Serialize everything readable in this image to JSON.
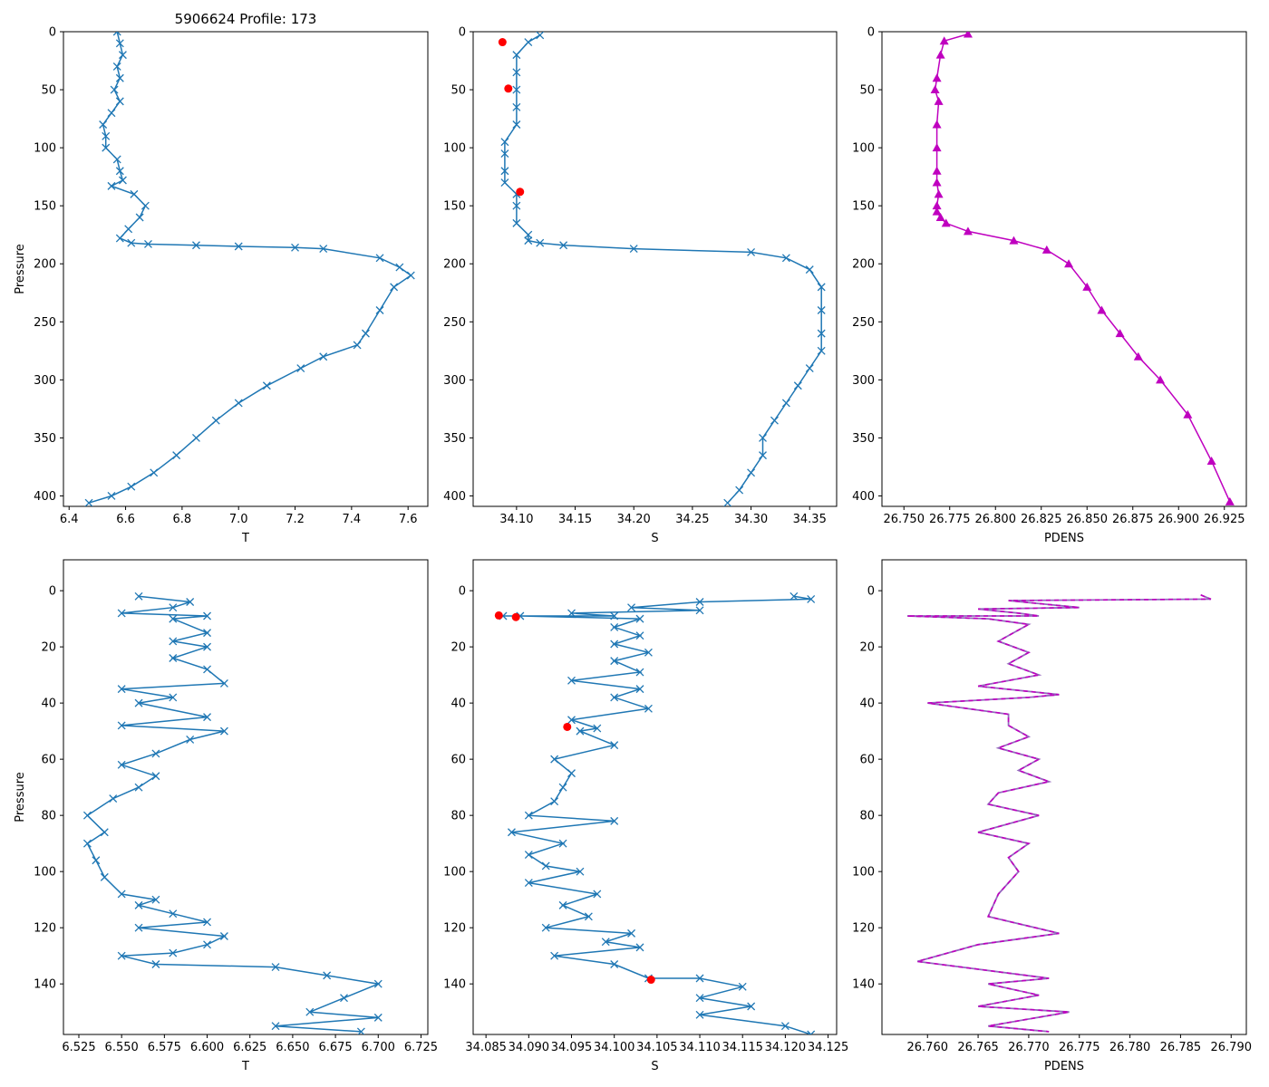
{
  "figure_title": "5906624 Profile: 173",
  "colors": {
    "series": "#1f77b4",
    "flag": "#ff0000",
    "density": "#bf00bf",
    "density_dash": "#9467bd"
  },
  "chart_data": [
    {
      "type": "line",
      "panel": "top-left",
      "xlabel": "T",
      "ylabel": "Pressure",
      "y_inverted": true,
      "xlim": [
        6.38,
        7.67
      ],
      "ylim": [
        409,
        0
      ],
      "xticks": [
        "6.4",
        "6.6",
        "6.8",
        "7.0",
        "7.2",
        "7.4",
        "7.6"
      ],
      "xtick_values": [
        6.4,
        6.6,
        6.8,
        7.0,
        7.2,
        7.4,
        7.6
      ],
      "yticks": [
        "0",
        "50",
        "100",
        "150",
        "200",
        "250",
        "300",
        "350",
        "400"
      ],
      "ytick_values": [
        0,
        50,
        100,
        150,
        200,
        250,
        300,
        350,
        400
      ],
      "marker": "x",
      "series": [
        {
          "name": "T",
          "x": [
            6.57,
            6.58,
            6.59,
            6.57,
            6.58,
            6.56,
            6.58,
            6.55,
            6.52,
            6.53,
            6.53,
            6.57,
            6.58,
            6.59,
            6.55,
            6.63,
            6.67,
            6.65,
            6.61,
            6.58,
            6.62,
            6.68,
            6.85,
            7.0,
            7.2,
            7.3,
            7.5,
            7.57,
            7.61,
            7.55,
            7.5,
            7.45,
            7.42,
            7.3,
            7.22,
            7.1,
            7.0,
            6.92,
            6.85,
            6.78,
            6.7,
            6.62,
            6.55,
            6.47
          ],
          "y": [
            0,
            10,
            20,
            30,
            40,
            50,
            60,
            70,
            80,
            90,
            100,
            110,
            120,
            128,
            133,
            140,
            150,
            160,
            170,
            178,
            182,
            183,
            184,
            185,
            186,
            187,
            195,
            203,
            210,
            220,
            240,
            260,
            270,
            280,
            290,
            305,
            320,
            335,
            350,
            365,
            380,
            392,
            400,
            406
          ]
        }
      ]
    },
    {
      "type": "line",
      "panel": "top-middle",
      "xlabel": "S",
      "y_inverted": true,
      "xlim": [
        34.063,
        34.373
      ],
      "ylim": [
        409,
        0
      ],
      "xticks": [
        "34.10",
        "34.15",
        "34.20",
        "34.25",
        "34.30",
        "34.35"
      ],
      "xtick_values": [
        34.1,
        34.15,
        34.2,
        34.25,
        34.3,
        34.35
      ],
      "yticks": [
        "0",
        "50",
        "100",
        "150",
        "200",
        "250",
        "300",
        "350",
        "400"
      ],
      "ytick_values": [
        0,
        50,
        100,
        150,
        200,
        250,
        300,
        350,
        400
      ],
      "marker": "x",
      "series": [
        {
          "name": "S",
          "x": [
            34.12,
            34.11,
            34.1,
            34.1,
            34.1,
            34.1,
            34.1,
            34.09,
            34.09,
            34.09,
            34.09,
            34.1,
            34.1,
            34.1,
            34.11,
            34.11,
            34.12,
            34.14,
            34.2,
            34.3,
            34.33,
            34.35,
            34.36,
            34.36,
            34.36,
            34.36,
            34.35,
            34.34,
            34.33,
            34.32,
            34.31,
            34.31,
            34.3,
            34.29,
            34.28
          ],
          "y": [
            3,
            9,
            20,
            35,
            50,
            65,
            80,
            95,
            105,
            120,
            130,
            140,
            150,
            165,
            175,
            180,
            182,
            184,
            187,
            190,
            195,
            205,
            220,
            240,
            260,
            275,
            290,
            305,
            320,
            335,
            350,
            365,
            380,
            395,
            406
          ]
        },
        {
          "name": "flagged",
          "x": [
            34.088,
            34.093,
            34.103
          ],
          "y": [
            9,
            49,
            138
          ]
        }
      ]
    },
    {
      "type": "line",
      "panel": "top-right",
      "xlabel": "PDENS",
      "y_inverted": true,
      "xlim": [
        26.738,
        26.937
      ],
      "ylim": [
        409,
        0
      ],
      "xticks": [
        "26.750",
        "26.775",
        "26.800",
        "26.825",
        "26.850",
        "26.875",
        "26.900",
        "26.925"
      ],
      "xtick_values": [
        26.75,
        26.775,
        26.8,
        26.825,
        26.85,
        26.875,
        26.9,
        26.925
      ],
      "yticks": [
        "0",
        "50",
        "100",
        "150",
        "200",
        "250",
        "300",
        "350",
        "400"
      ],
      "ytick_values": [
        0,
        50,
        100,
        150,
        200,
        250,
        300,
        350,
        400
      ],
      "marker": "triangle",
      "series": [
        {
          "name": "PDENS",
          "x": [
            26.785,
            26.772,
            26.77,
            26.768,
            26.767,
            26.769,
            26.768,
            26.768,
            26.768,
            26.768,
            26.769,
            26.768,
            26.768,
            26.77,
            26.773,
            26.785,
            26.81,
            26.828,
            26.84,
            26.85,
            26.858,
            26.868,
            26.878,
            26.89,
            26.905,
            26.918,
            26.928
          ],
          "y": [
            2,
            8,
            20,
            40,
            50,
            60,
            80,
            100,
            120,
            130,
            140,
            150,
            155,
            160,
            165,
            172,
            180,
            188,
            200,
            220,
            240,
            260,
            280,
            300,
            330,
            370,
            405
          ]
        }
      ]
    },
    {
      "type": "line",
      "panel": "bottom-left",
      "xlabel": "T",
      "ylabel": "Pressure",
      "y_inverted": true,
      "xlim": [
        6.516,
        6.729
      ],
      "ylim": [
        158,
        -11
      ],
      "xticks": [
        "6.525",
        "6.550",
        "6.575",
        "6.600",
        "6.625",
        "6.650",
        "6.675",
        "6.700",
        "6.725"
      ],
      "xtick_values": [
        6.525,
        6.55,
        6.575,
        6.6,
        6.625,
        6.65,
        6.675,
        6.7,
        6.725
      ],
      "yticks": [
        "0",
        "20",
        "40",
        "60",
        "80",
        "100",
        "120",
        "140"
      ],
      "ytick_values": [
        0,
        20,
        40,
        60,
        80,
        100,
        120,
        140
      ],
      "marker": "x",
      "series": [
        {
          "name": "T",
          "x": [
            6.56,
            6.59,
            6.58,
            6.55,
            6.6,
            6.58,
            6.6,
            6.58,
            6.6,
            6.58,
            6.6,
            6.61,
            6.55,
            6.58,
            6.56,
            6.6,
            6.55,
            6.61,
            6.59,
            6.57,
            6.55,
            6.57,
            6.56,
            6.545,
            6.53,
            6.54,
            6.53,
            6.535,
            6.54,
            6.55,
            6.57,
            6.56,
            6.58,
            6.6,
            6.56,
            6.61,
            6.6,
            6.58,
            6.55,
            6.57,
            6.64,
            6.67,
            6.7,
            6.68,
            6.66,
            6.7,
            6.64,
            6.69
          ],
          "y": [
            2,
            4,
            6,
            8,
            9,
            10,
            15,
            18,
            20,
            24,
            28,
            33,
            35,
            38,
            40,
            45,
            48,
            50,
            53,
            58,
            62,
            66,
            70,
            74,
            80,
            86,
            90,
            96,
            102,
            108,
            110,
            112,
            115,
            118,
            120,
            123,
            126,
            129,
            130,
            133,
            134,
            137,
            140,
            145,
            150,
            152,
            155,
            157
          ]
        }
      ]
    },
    {
      "type": "line",
      "panel": "bottom-middle",
      "xlabel": "S",
      "y_inverted": true,
      "xlim": [
        34.0835,
        34.126
      ],
      "ylim": [
        158,
        -11
      ],
      "xticks": [
        "34.085",
        "34.090",
        "34.095",
        "34.100",
        "34.105",
        "34.110",
        "34.115",
        "34.120",
        "34.125"
      ],
      "xtick_values": [
        34.085,
        34.09,
        34.095,
        34.1,
        34.105,
        34.11,
        34.115,
        34.12,
        34.125
      ],
      "yticks": [
        "0",
        "20",
        "40",
        "60",
        "80",
        "100",
        "120",
        "140"
      ],
      "ytick_values": [
        0,
        20,
        40,
        60,
        80,
        100,
        120,
        140
      ],
      "marker": "x",
      "series": [
        {
          "name": "S",
          "x": [
            34.121,
            34.123,
            34.11,
            34.102,
            34.11,
            34.095,
            34.1,
            34.087,
            34.089,
            34.103,
            34.1,
            34.103,
            34.1,
            34.104,
            34.1,
            34.103,
            34.095,
            34.103,
            34.1,
            34.104,
            34.095,
            34.098,
            34.096,
            34.1,
            34.093,
            34.095,
            34.094,
            34.093,
            34.09,
            34.1,
            34.088,
            34.094,
            34.09,
            34.092,
            34.096,
            34.09,
            34.098,
            34.094,
            34.097,
            34.092,
            34.102,
            34.099,
            34.103,
            34.093,
            34.1,
            34.104,
            34.11,
            34.115,
            34.11,
            34.116,
            34.11,
            34.12,
            34.123
          ],
          "y": [
            2,
            3,
            4,
            6,
            7,
            8,
            9,
            9,
            9,
            10,
            13,
            16,
            19,
            22,
            25,
            29,
            32,
            35,
            38,
            42,
            46,
            49,
            50,
            55,
            60,
            65,
            70,
            75,
            80,
            82,
            86,
            90,
            94,
            98,
            100,
            104,
            108,
            112,
            116,
            120,
            122,
            125,
            127,
            130,
            133,
            138,
            138,
            141,
            145,
            148,
            151,
            155,
            158
          ]
        },
        {
          "name": "flagged",
          "x": [
            34.0865,
            34.0885,
            34.0945,
            34.1043
          ],
          "y": [
            8.8,
            9.4,
            48.5,
            138.5
          ]
        }
      ]
    },
    {
      "type": "line",
      "panel": "bottom-right",
      "xlabel": "PDENS",
      "y_inverted": true,
      "xlim": [
        26.7555,
        26.7915
      ],
      "ylim": [
        158,
        -11
      ],
      "xticks": [
        "26.760",
        "26.765",
        "26.770",
        "26.775",
        "26.780",
        "26.785",
        "26.790"
      ],
      "xtick_values": [
        26.76,
        26.765,
        26.77,
        26.775,
        26.78,
        26.785,
        26.79
      ],
      "yticks": [
        "0",
        "20",
        "40",
        "60",
        "80",
        "100",
        "120",
        "140"
      ],
      "ytick_values": [
        0,
        20,
        40,
        60,
        80,
        100,
        120,
        140
      ],
      "marker": "none",
      "series": [
        {
          "name": "PDENS",
          "x": [
            26.787,
            26.788,
            26.768,
            26.775,
            26.765,
            26.769,
            26.771,
            26.758,
            26.766,
            26.77,
            26.767,
            26.77,
            26.768,
            26.771,
            26.765,
            26.773,
            26.77,
            26.76,
            26.768,
            26.768,
            26.77,
            26.767,
            26.771,
            26.769,
            26.772,
            26.767,
            26.766,
            26.771,
            26.765,
            26.77,
            26.768,
            26.769,
            26.767,
            26.766,
            26.773,
            26.765,
            26.759,
            26.772,
            26.766,
            26.771,
            26.765,
            26.774,
            26.766,
            26.772
          ],
          "y": [
            1.5,
            3,
            3.5,
            6,
            6.5,
            8,
            9,
            9,
            10,
            12,
            18,
            22,
            26,
            30,
            34,
            37,
            38,
            40,
            44,
            48,
            52,
            56,
            60,
            64,
            68,
            72,
            76,
            80,
            86,
            90,
            95,
            100,
            108,
            116,
            122,
            126,
            132,
            138,
            140,
            144,
            148,
            150,
            155,
            157
          ]
        }
      ]
    }
  ]
}
